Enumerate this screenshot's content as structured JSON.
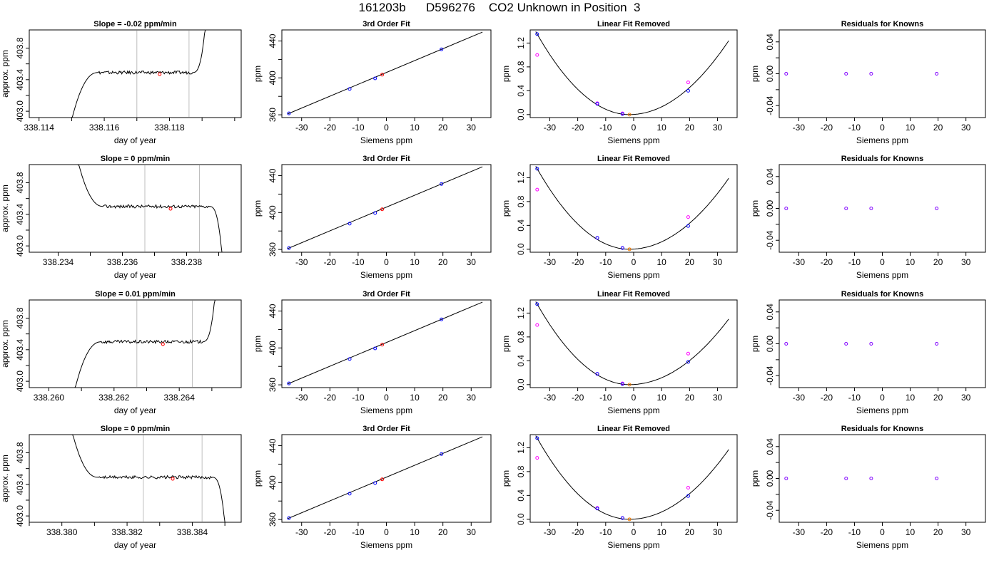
{
  "page": {
    "title": "161203b      D596276    CO2 Unknown in Position  3"
  },
  "labels": {
    "doy_xlabel": "day of year",
    "approx_ylabel": "approx. ppm",
    "siemens_xlabel": "Siemens ppm",
    "ppm_ylabel": "ppm",
    "fit_title": "3rd Order Fit",
    "linear_title": "Linear Fit Removed",
    "resid_title": "Residuals for Knowns"
  },
  "colors": {
    "known": "#0000ff",
    "unknown": "#ff0000",
    "residual_known": "#8000ff",
    "linear_point": "#ff00ff",
    "linear_unknown": "#ff8000",
    "cursor_line": "#bebebe",
    "curve": "#000000"
  },
  "chart_data": [
    {
      "type": "line",
      "panel": "time-series",
      "row": 1,
      "title": "Slope =  -0.02  ppm/min",
      "xlabel": "day of year",
      "ylabel": "approx. ppm",
      "xlim": [
        338.1137,
        338.1202
      ],
      "ylim": [
        402.92,
        404.03
      ],
      "xticks": [
        "338.114",
        "338.116",
        "338.118"
      ],
      "yticks": [
        "403.0",
        "403.4",
        "403.8"
      ],
      "ytick_values": [
        403.0,
        403.4,
        403.8
      ],
      "x_start": 338.115,
      "x_end": 338.1191,
      "plateau": 403.49,
      "rise_start": true,
      "rise_end": true,
      "guides": [
        338.117,
        338.1186
      ],
      "marker": [
        338.1177,
        403.47
      ]
    },
    {
      "type": "line",
      "panel": "time-series",
      "row": 2,
      "title": "Slope =  0  ppm/min",
      "xlabel": "day of year",
      "ylabel": "approx. ppm",
      "xlim": [
        338.2331,
        338.2397
      ],
      "ylim": [
        402.92,
        404.03
      ],
      "xticks": [
        "338.234",
        "338.236",
        "338.238"
      ],
      "yticks": [
        "403.0",
        "403.4",
        "403.8"
      ],
      "ytick_values": [
        403.0,
        403.4,
        403.8
      ],
      "x_start": 338.2346,
      "x_end": 338.2391,
      "plateau": 403.5,
      "fall_start": true,
      "fall_end": true,
      "guides": [
        338.2367,
        338.2384
      ],
      "marker": [
        338.2375,
        403.47
      ]
    },
    {
      "type": "line",
      "panel": "time-series",
      "row": 3,
      "title": "Slope =  0.01  ppm/min",
      "xlabel": "day of year",
      "ylabel": "approx. ppm",
      "xlim": [
        338.2594,
        338.2659
      ],
      "ylim": [
        402.92,
        404.03
      ],
      "xticks": [
        "338.260",
        "338.262",
        "338.264"
      ],
      "yticks": [
        "403.0",
        "403.4",
        "403.8"
      ],
      "ytick_values": [
        403.0,
        403.4,
        403.8
      ],
      "x_start": 338.2608,
      "x_end": 338.2651,
      "plateau": 403.5,
      "rise_start": true,
      "rise_end": true,
      "guides": [
        338.2627,
        338.2644
      ],
      "marker": [
        338.2635,
        403.47
      ]
    },
    {
      "type": "line",
      "panel": "time-series",
      "row": 4,
      "title": "Slope =  0  ppm/min",
      "xlabel": "day of year",
      "ylabel": "approx. ppm",
      "xlim": [
        338.379,
        338.3855
      ],
      "ylim": [
        402.92,
        404.03
      ],
      "xticks": [
        "338.380",
        "338.382",
        "338.384"
      ],
      "yticks": [
        "403.0",
        "403.4",
        "403.8"
      ],
      "ytick_values": [
        403.0,
        403.4,
        403.8
      ],
      "x_start": 338.3803,
      "x_end": 338.385,
      "plateau": 403.49,
      "fall_start": true,
      "fall_end": true,
      "guides": [
        338.3825,
        338.3843
      ],
      "marker": [
        338.3834,
        403.47
      ]
    },
    {
      "type": "scatter",
      "panel": "fit",
      "row": 1,
      "title": "3rd Order Fit",
      "xlabel": "Siemens ppm",
      "ylabel": "ppm",
      "xlim": [
        -37,
        37
      ],
      "ylim": [
        357,
        452
      ],
      "xticks": [
        -30,
        -20,
        -10,
        0,
        10,
        20,
        30
      ],
      "yticks": [
        360,
        400,
        440
      ],
      "knowns": [
        [
          -34.5,
          361.5
        ],
        [
          -13,
          388.0
        ],
        [
          -4,
          399.5
        ],
        [
          19.5,
          431.0
        ]
      ],
      "unknown": [
        -1.5,
        403.5
      ]
    },
    {
      "type": "scatter",
      "panel": "fit",
      "row": 2,
      "title": "3rd Order Fit",
      "xlabel": "Siemens ppm",
      "ylabel": "ppm",
      "xlim": [
        -37,
        37
      ],
      "ylim": [
        357,
        452
      ],
      "xticks": [
        -30,
        -20,
        -10,
        0,
        10,
        20,
        30
      ],
      "yticks": [
        360,
        400,
        440
      ],
      "knowns": [
        [
          -34.5,
          361.5
        ],
        [
          -13,
          388.0
        ],
        [
          -4,
          399.5
        ],
        [
          19.5,
          431.0
        ]
      ],
      "unknown": [
        -1.5,
        403.5
      ]
    },
    {
      "type": "scatter",
      "panel": "fit",
      "row": 3,
      "title": "3rd Order Fit",
      "xlabel": "Siemens ppm",
      "ylabel": "ppm",
      "xlim": [
        -37,
        37
      ],
      "ylim": [
        357,
        452
      ],
      "xticks": [
        -30,
        -20,
        -10,
        0,
        10,
        20,
        30
      ],
      "yticks": [
        360,
        400,
        440
      ],
      "knowns": [
        [
          -34.5,
          361.5
        ],
        [
          -13,
          388.0
        ],
        [
          -4,
          399.5
        ],
        [
          19.5,
          431.0
        ]
      ],
      "unknown": [
        -1.5,
        403.5
      ]
    },
    {
      "type": "scatter",
      "panel": "fit",
      "row": 4,
      "title": "3rd Order Fit",
      "xlabel": "Siemens ppm",
      "ylabel": "ppm",
      "xlim": [
        -37,
        37
      ],
      "ylim": [
        357,
        452
      ],
      "xticks": [
        -30,
        -20,
        -10,
        0,
        10,
        20,
        30
      ],
      "yticks": [
        360,
        400,
        440
      ],
      "knowns": [
        [
          -34.5,
          361.5
        ],
        [
          -13,
          388.0
        ],
        [
          -4,
          399.5
        ],
        [
          19.5,
          431.0
        ]
      ],
      "unknown": [
        -1.5,
        403.5
      ]
    },
    {
      "type": "scatter",
      "panel": "linear",
      "row": 1,
      "title": "Linear Fit Removed",
      "xlabel": "Siemens ppm",
      "ylabel": "ppm",
      "xlim": [
        -37,
        37
      ],
      "ylim": [
        -0.05,
        1.42
      ],
      "xticks": [
        -30,
        -20,
        -10,
        0,
        10,
        20,
        30
      ],
      "yticks": [
        0.0,
        0.4,
        0.8,
        1.2
      ],
      "knowns": [
        [
          -34.5,
          1.35
        ],
        [
          -13,
          0.18
        ],
        [
          -4,
          0.01
        ],
        [
          19.5,
          0.4
        ]
      ],
      "raw": [
        [
          -34.5,
          1.0
        ],
        [
          -13,
          0.19
        ],
        [
          -4,
          0.02
        ],
        [
          19.5,
          0.54
        ]
      ],
      "unknown": [
        -1.5,
        0.0
      ],
      "curve_peak_x": 34,
      "curve_peak_y": 1.24
    },
    {
      "type": "scatter",
      "panel": "linear",
      "row": 2,
      "title": "Linear Fit Removed",
      "xlabel": "Siemens ppm",
      "ylabel": "ppm",
      "xlim": [
        -37,
        37
      ],
      "ylim": [
        -0.05,
        1.42
      ],
      "xticks": [
        -30,
        -20,
        -10,
        0,
        10,
        20,
        30
      ],
      "yticks": [
        0.0,
        0.4,
        0.8,
        1.2
      ],
      "knowns": [
        [
          -34.5,
          1.35
        ],
        [
          -13,
          0.19
        ],
        [
          -4,
          0.02
        ],
        [
          19.5,
          0.39
        ]
      ],
      "raw": [
        [
          -34.5,
          1.0
        ],
        [
          -13,
          0.19
        ],
        [
          -4,
          0.02
        ],
        [
          19.5,
          0.54
        ]
      ],
      "unknown": [
        -1.5,
        0.0
      ],
      "curve_peak_x": 34,
      "curve_peak_y": 1.19
    },
    {
      "type": "scatter",
      "panel": "linear",
      "row": 3,
      "title": "Linear Fit Removed",
      "xlabel": "Siemens ppm",
      "ylabel": "ppm",
      "xlim": [
        -37,
        37
      ],
      "ylim": [
        -0.05,
        1.42
      ],
      "xticks": [
        -30,
        -20,
        -10,
        0,
        10,
        20,
        30
      ],
      "yticks": [
        0.0,
        0.4,
        0.8,
        1.2
      ],
      "knowns": [
        [
          -34.5,
          1.35
        ],
        [
          -13,
          0.18
        ],
        [
          -4,
          0.01
        ],
        [
          19.5,
          0.38
        ]
      ],
      "raw": [
        [
          -34.5,
          1.0
        ],
        [
          -13,
          0.18
        ],
        [
          -4,
          0.02
        ],
        [
          19.5,
          0.52
        ]
      ],
      "unknown": [
        -1.5,
        0.0
      ],
      "curve_peak_x": 34,
      "curve_peak_y": 1.1
    },
    {
      "type": "scatter",
      "panel": "linear",
      "row": 4,
      "title": "Linear Fit Removed",
      "xlabel": "Siemens ppm",
      "ylabel": "ppm",
      "xlim": [
        -37,
        37
      ],
      "ylim": [
        -0.05,
        1.42
      ],
      "xticks": [
        -30,
        -20,
        -10,
        0,
        10,
        20,
        30
      ],
      "yticks": [
        0.0,
        0.4,
        0.8,
        1.2
      ],
      "knowns": [
        [
          -34.5,
          1.36
        ],
        [
          -13,
          0.18
        ],
        [
          -4,
          0.02
        ],
        [
          19.5,
          0.39
        ]
      ],
      "raw": [
        [
          -34.5,
          1.03
        ],
        [
          -13,
          0.19
        ],
        [
          -4,
          0.02
        ],
        [
          19.5,
          0.53
        ]
      ],
      "unknown": [
        -1.5,
        0.0
      ],
      "curve_peak_x": 34,
      "curve_peak_y": 1.17
    },
    {
      "type": "scatter",
      "panel": "residuals",
      "row": 1,
      "title": "Residuals for Knowns",
      "xlabel": "Siemens ppm",
      "ylabel": "ppm",
      "xlim": [
        -37,
        37
      ],
      "ylim": [
        -0.055,
        0.055
      ],
      "xticks": [
        -30,
        -20,
        -10,
        0,
        10,
        20,
        30
      ],
      "yticks": [
        "-0.04",
        "0.00",
        "0.04"
      ],
      "ytick_values": [
        -0.04,
        0.0,
        0.04
      ],
      "points": [
        [
          -34.5,
          0.0
        ],
        [
          -13,
          0.0
        ],
        [
          -4,
          0.0
        ],
        [
          19.5,
          0.0
        ]
      ]
    },
    {
      "type": "scatter",
      "panel": "residuals",
      "row": 2,
      "title": "Residuals for Knowns",
      "xlabel": "Siemens ppm",
      "ylabel": "ppm",
      "xlim": [
        -37,
        37
      ],
      "ylim": [
        -0.055,
        0.055
      ],
      "xticks": [
        -30,
        -20,
        -10,
        0,
        10,
        20,
        30
      ],
      "yticks": [
        "-0.04",
        "0.00",
        "0.04"
      ],
      "ytick_values": [
        -0.04,
        0.0,
        0.04
      ],
      "points": [
        [
          -34.5,
          0.0
        ],
        [
          -13,
          0.0
        ],
        [
          -4,
          0.0
        ],
        [
          19.5,
          0.0
        ]
      ]
    },
    {
      "type": "scatter",
      "panel": "residuals",
      "row": 3,
      "title": "Residuals for Knowns",
      "xlabel": "Siemens ppm",
      "ylabel": "ppm",
      "xlim": [
        -37,
        37
      ],
      "ylim": [
        -0.055,
        0.055
      ],
      "xticks": [
        -30,
        -20,
        -10,
        0,
        10,
        20,
        30
      ],
      "yticks": [
        "-0.04",
        "0.00",
        "0.04"
      ],
      "ytick_values": [
        -0.04,
        0.0,
        0.04
      ],
      "points": [
        [
          -34.5,
          0.0
        ],
        [
          -13,
          0.0
        ],
        [
          -4,
          0.0
        ],
        [
          19.5,
          0.0
        ]
      ]
    },
    {
      "type": "scatter",
      "panel": "residuals",
      "row": 4,
      "title": "Residuals for Knowns",
      "xlabel": "Siemens ppm",
      "ylabel": "ppm",
      "xlim": [
        -37,
        37
      ],
      "ylim": [
        -0.055,
        0.055
      ],
      "xticks": [
        -30,
        -20,
        -10,
        0,
        10,
        20,
        30
      ],
      "yticks": [
        "-0.04",
        "0.00",
        "0.04"
      ],
      "ytick_values": [
        -0.04,
        0.0,
        0.04
      ],
      "points": [
        [
          -34.5,
          0.0
        ],
        [
          -13,
          0.0
        ],
        [
          -4,
          0.0
        ],
        [
          19.5,
          0.0
        ]
      ]
    }
  ]
}
